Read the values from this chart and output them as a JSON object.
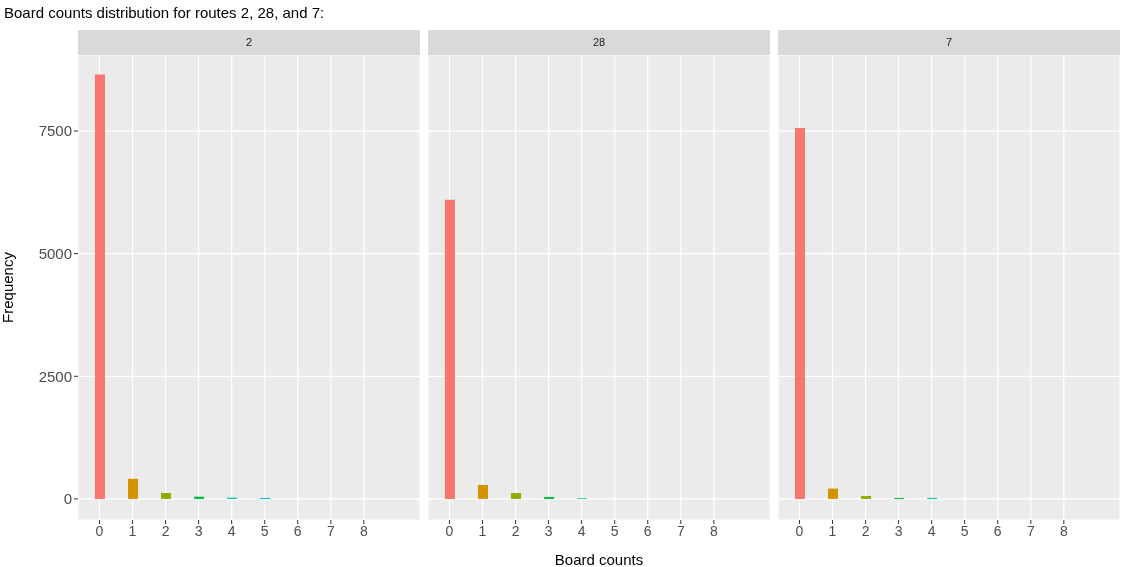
{
  "chart_data": [
    {
      "type": "bar",
      "title": "Board counts distribution for routes 2, 28, and 7:",
      "subtitle": "2",
      "ylabel": "Frequency",
      "x": [
        0,
        1,
        2,
        3,
        4,
        5
      ],
      "values": [
        8650,
        410,
        120,
        45,
        25,
        20
      ],
      "colors": [
        "#f8766d",
        "#d39200",
        "#93aa00",
        "#00ba38",
        "#00c19f",
        "#00b9e3"
      ],
      "xlim": [
        -0.65,
        9.7
      ],
      "xticks": [
        0,
        1,
        2,
        3,
        4,
        5,
        6,
        7,
        8
      ],
      "ylim": [
        -430,
        9050
      ],
      "yticks": [
        0,
        2500,
        5000,
        7500
      ],
      "grid": true
    },
    {
      "type": "bar",
      "subtitle": "28",
      "xlabel": "Board counts",
      "x": [
        0,
        1,
        2,
        3,
        4
      ],
      "values": [
        6100,
        285,
        120,
        40,
        15
      ],
      "colors": [
        "#f8766d",
        "#d39200",
        "#93aa00",
        "#00ba38",
        "#00c19f"
      ],
      "xlim": [
        -0.65,
        9.7
      ],
      "xticks": [
        0,
        1,
        2,
        3,
        4,
        5,
        6,
        7,
        8
      ],
      "ylim": [
        -430,
        9050
      ],
      "yticks": [
        0,
        2500,
        5000,
        7500
      ],
      "grid": true,
      "tick_labels": "x"
    },
    {
      "type": "bar",
      "subtitle": "7",
      "x": [
        0,
        1,
        2,
        3,
        4
      ],
      "values": [
        7560,
        210,
        60,
        20,
        20
      ],
      "colors": [
        "#f8766d",
        "#d39200",
        "#93aa00",
        "#00ba38",
        "#00c19f"
      ],
      "xlim": [
        -0.65,
        9.7
      ],
      "xticks": [
        0,
        1,
        2,
        3,
        4,
        5,
        6,
        7,
        8
      ],
      "ylim": [
        -430,
        9050
      ],
      "yticks": [
        0,
        2500,
        5000,
        7500
      ],
      "grid": true,
      "tick_labels": "x"
    }
  ]
}
